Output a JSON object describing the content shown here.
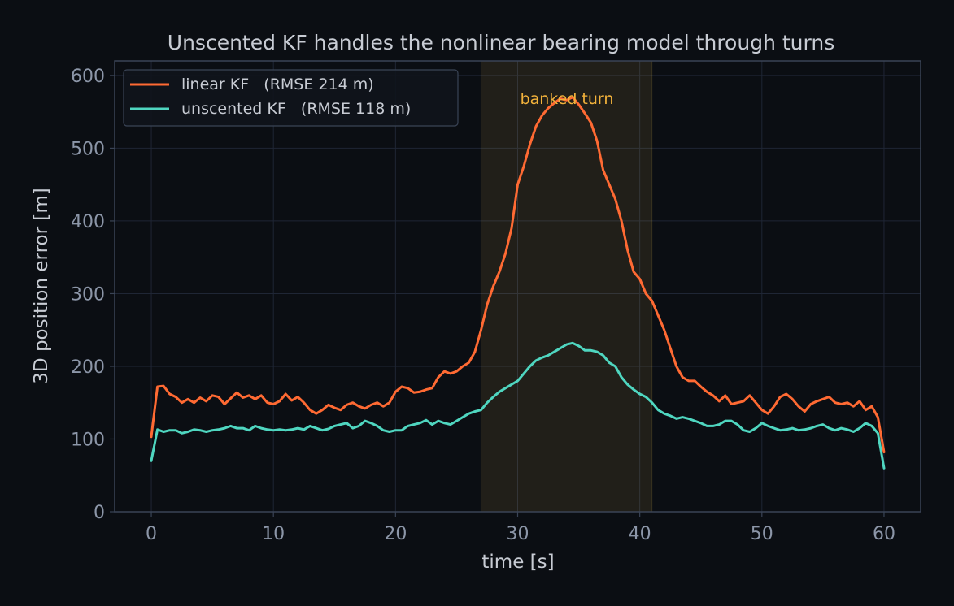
{
  "chart_data": {
    "type": "line",
    "title": "Unscented KF handles the nonlinear bearing model through turns",
    "xlabel": "time [s]",
    "ylabel": "3D position error [m]",
    "xlim": [
      -3,
      63
    ],
    "ylim": [
      0,
      620
    ],
    "xticks": [
      0,
      10,
      20,
      30,
      40,
      50,
      60
    ],
    "yticks": [
      0,
      100,
      200,
      300,
      400,
      500,
      600
    ],
    "grid": true,
    "legend_position": "top-left",
    "shaded_region": {
      "x_start": 27,
      "x_end": 41,
      "label": "banked turn",
      "color": "#ffd45a",
      "label_color": "#f2b23b"
    },
    "series": [
      {
        "name": "linear KF   (RMSE 214 m)",
        "color": "#ff6a33",
        "points": [
          [
            0,
            103
          ],
          [
            0.5,
            172
          ],
          [
            1,
            173
          ],
          [
            1.5,
            162
          ],
          [
            2,
            158
          ],
          [
            2.5,
            150
          ],
          [
            3,
            155
          ],
          [
            3.5,
            150
          ],
          [
            4,
            157
          ],
          [
            4.5,
            152
          ],
          [
            5,
            160
          ],
          [
            5.5,
            158
          ],
          [
            6,
            148
          ],
          [
            6.5,
            156
          ],
          [
            7,
            164
          ],
          [
            7.5,
            157
          ],
          [
            8,
            160
          ],
          [
            8.5,
            155
          ],
          [
            9,
            160
          ],
          [
            9.5,
            150
          ],
          [
            10,
            148
          ],
          [
            10.5,
            152
          ],
          [
            11,
            162
          ],
          [
            11.5,
            153
          ],
          [
            12,
            158
          ],
          [
            12.5,
            150
          ],
          [
            13,
            140
          ],
          [
            13.5,
            135
          ],
          [
            14,
            140
          ],
          [
            14.5,
            147
          ],
          [
            15,
            143
          ],
          [
            15.5,
            140
          ],
          [
            16,
            147
          ],
          [
            16.5,
            150
          ],
          [
            17,
            145
          ],
          [
            17.5,
            142
          ],
          [
            18,
            147
          ],
          [
            18.5,
            150
          ],
          [
            19,
            145
          ],
          [
            19.5,
            150
          ],
          [
            20,
            165
          ],
          [
            20.5,
            172
          ],
          [
            21,
            170
          ],
          [
            21.5,
            164
          ],
          [
            22,
            165
          ],
          [
            22.5,
            168
          ],
          [
            23,
            170
          ],
          [
            23.5,
            185
          ],
          [
            24,
            193
          ],
          [
            24.5,
            190
          ],
          [
            25,
            193
          ],
          [
            25.5,
            200
          ],
          [
            26,
            205
          ],
          [
            26.5,
            220
          ],
          [
            27,
            250
          ],
          [
            27.5,
            285
          ],
          [
            28,
            310
          ],
          [
            28.5,
            330
          ],
          [
            29,
            355
          ],
          [
            29.5,
            390
          ],
          [
            30,
            450
          ],
          [
            30.5,
            475
          ],
          [
            31,
            505
          ],
          [
            31.5,
            530
          ],
          [
            32,
            545
          ],
          [
            32.5,
            555
          ],
          [
            33,
            562
          ],
          [
            33.5,
            568
          ],
          [
            34,
            566
          ],
          [
            34.5,
            570
          ],
          [
            35,
            560
          ],
          [
            35.5,
            548
          ],
          [
            36,
            535
          ],
          [
            36.5,
            510
          ],
          [
            37,
            470
          ],
          [
            37.5,
            450
          ],
          [
            38,
            430
          ],
          [
            38.5,
            400
          ],
          [
            39,
            360
          ],
          [
            39.5,
            330
          ],
          [
            40,
            320
          ],
          [
            40.5,
            300
          ],
          [
            41,
            290
          ],
          [
            41.5,
            270
          ],
          [
            42,
            250
          ],
          [
            42.5,
            225
          ],
          [
            43,
            200
          ],
          [
            43.5,
            185
          ],
          [
            44,
            180
          ],
          [
            44.5,
            180
          ],
          [
            45,
            172
          ],
          [
            45.5,
            165
          ],
          [
            46,
            160
          ],
          [
            46.5,
            152
          ],
          [
            47,
            160
          ],
          [
            47.5,
            148
          ],
          [
            48,
            150
          ],
          [
            48.5,
            152
          ],
          [
            49,
            160
          ],
          [
            49.5,
            150
          ],
          [
            50,
            140
          ],
          [
            50.5,
            135
          ],
          [
            51,
            145
          ],
          [
            51.5,
            158
          ],
          [
            52,
            162
          ],
          [
            52.5,
            155
          ],
          [
            53,
            145
          ],
          [
            53.5,
            138
          ],
          [
            54,
            148
          ],
          [
            54.5,
            152
          ],
          [
            55,
            155
          ],
          [
            55.5,
            158
          ],
          [
            56,
            150
          ],
          [
            56.5,
            148
          ],
          [
            57,
            150
          ],
          [
            57.5,
            145
          ],
          [
            58,
            152
          ],
          [
            58.5,
            140
          ],
          [
            59,
            145
          ],
          [
            59.5,
            130
          ],
          [
            60,
            82
          ]
        ]
      },
      {
        "name": "unscented KF   (RMSE 118 m)",
        "color": "#4fd6c0",
        "points": [
          [
            0,
            70
          ],
          [
            0.5,
            113
          ],
          [
            1,
            110
          ],
          [
            1.5,
            112
          ],
          [
            2,
            112
          ],
          [
            2.5,
            108
          ],
          [
            3,
            110
          ],
          [
            3.5,
            113
          ],
          [
            4,
            112
          ],
          [
            4.5,
            110
          ],
          [
            5,
            112
          ],
          [
            5.5,
            113
          ],
          [
            6,
            115
          ],
          [
            6.5,
            118
          ],
          [
            7,
            115
          ],
          [
            7.5,
            115
          ],
          [
            8,
            112
          ],
          [
            8.5,
            118
          ],
          [
            9,
            115
          ],
          [
            9.5,
            113
          ],
          [
            10,
            112
          ],
          [
            10.5,
            113
          ],
          [
            11,
            112
          ],
          [
            11.5,
            113
          ],
          [
            12,
            115
          ],
          [
            12.5,
            113
          ],
          [
            13,
            118
          ],
          [
            13.5,
            115
          ],
          [
            14,
            112
          ],
          [
            14.5,
            114
          ],
          [
            15,
            118
          ],
          [
            15.5,
            120
          ],
          [
            16,
            122
          ],
          [
            16.5,
            115
          ],
          [
            17,
            118
          ],
          [
            17.5,
            125
          ],
          [
            18,
            122
          ],
          [
            18.5,
            118
          ],
          [
            19,
            112
          ],
          [
            19.5,
            110
          ],
          [
            20,
            112
          ],
          [
            20.5,
            112
          ],
          [
            21,
            118
          ],
          [
            21.5,
            120
          ],
          [
            22,
            122
          ],
          [
            22.5,
            126
          ],
          [
            23,
            120
          ],
          [
            23.5,
            125
          ],
          [
            24,
            122
          ],
          [
            24.5,
            120
          ],
          [
            25,
            125
          ],
          [
            25.5,
            130
          ],
          [
            26,
            135
          ],
          [
            26.5,
            138
          ],
          [
            27,
            140
          ],
          [
            27.5,
            150
          ],
          [
            28,
            158
          ],
          [
            28.5,
            165
          ],
          [
            29,
            170
          ],
          [
            29.5,
            175
          ],
          [
            30,
            180
          ],
          [
            30.5,
            190
          ],
          [
            31,
            200
          ],
          [
            31.5,
            208
          ],
          [
            32,
            212
          ],
          [
            32.5,
            215
          ],
          [
            33,
            220
          ],
          [
            33.5,
            225
          ],
          [
            34,
            230
          ],
          [
            34.5,
            232
          ],
          [
            35,
            228
          ],
          [
            35.5,
            222
          ],
          [
            36,
            222
          ],
          [
            36.5,
            220
          ],
          [
            37,
            215
          ],
          [
            37.5,
            205
          ],
          [
            38,
            200
          ],
          [
            38.5,
            185
          ],
          [
            39,
            175
          ],
          [
            39.5,
            168
          ],
          [
            40,
            162
          ],
          [
            40.5,
            158
          ],
          [
            41,
            150
          ],
          [
            41.5,
            140
          ],
          [
            42,
            135
          ],
          [
            42.5,
            132
          ],
          [
            43,
            128
          ],
          [
            43.5,
            130
          ],
          [
            44,
            128
          ],
          [
            44.5,
            125
          ],
          [
            45,
            122
          ],
          [
            45.5,
            118
          ],
          [
            46,
            118
          ],
          [
            46.5,
            120
          ],
          [
            47,
            125
          ],
          [
            47.5,
            125
          ],
          [
            48,
            120
          ],
          [
            48.5,
            112
          ],
          [
            49,
            110
          ],
          [
            49.5,
            115
          ],
          [
            50,
            122
          ],
          [
            50.5,
            118
          ],
          [
            51,
            115
          ],
          [
            51.5,
            112
          ],
          [
            52,
            113
          ],
          [
            52.5,
            115
          ],
          [
            53,
            112
          ],
          [
            53.5,
            113
          ],
          [
            54,
            115
          ],
          [
            54.5,
            118
          ],
          [
            55,
            120
          ],
          [
            55.5,
            115
          ],
          [
            56,
            112
          ],
          [
            56.5,
            115
          ],
          [
            57,
            113
          ],
          [
            57.5,
            110
          ],
          [
            58,
            115
          ],
          [
            58.5,
            122
          ],
          [
            59,
            118
          ],
          [
            59.5,
            108
          ],
          [
            60,
            60
          ]
        ]
      }
    ]
  },
  "colors": {
    "background": "#0b0e13",
    "plot_border": "#3a4456",
    "grid": "#1f2635",
    "tick_text": "#8c96a8",
    "label_text": "#c8ccd4"
  }
}
